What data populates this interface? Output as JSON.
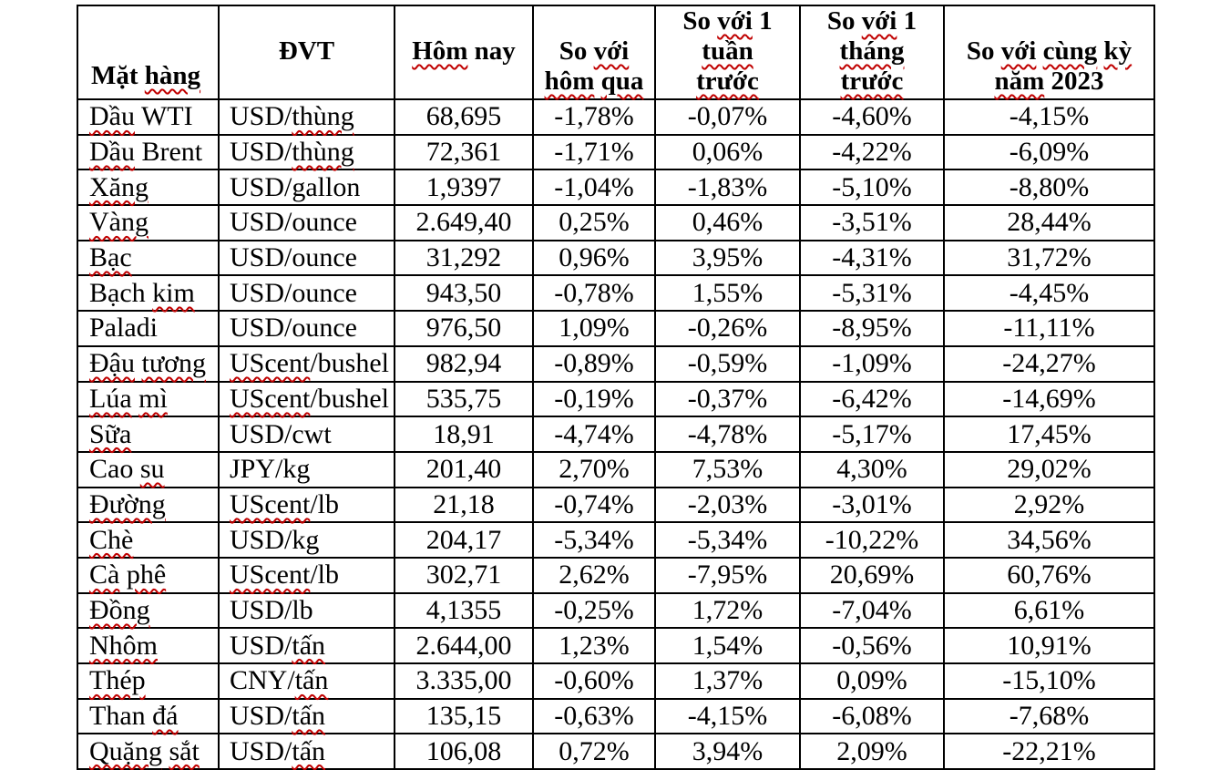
{
  "page": {
    "background": "#ffffff"
  },
  "colors": {
    "border": "#000000",
    "text": "#000000",
    "spellcheck_squiggle": "#c00000"
  },
  "table": {
    "column_keys": [
      "item",
      "unit",
      "today",
      "vs_yesterday",
      "vs_week",
      "vs_month",
      "vs_2023"
    ],
    "header": [
      {
        "key": "item",
        "lines": [
          [
            {
              "t": "Mặt ",
              "sq": false
            },
            {
              "t": "hàng",
              "sq": true
            }
          ]
        ]
      },
      {
        "key": "unit",
        "lines": [
          [
            {
              "t": "ĐVT",
              "sq": false
            }
          ]
        ]
      },
      {
        "key": "today",
        "lines": [
          [
            {
              "t": "Hôm",
              "sq": true
            },
            {
              "t": " nay",
              "sq": false
            }
          ]
        ]
      },
      {
        "key": "vs_yesterday",
        "lines": [
          [
            {
              "t": "So ",
              "sq": false
            },
            {
              "t": "với",
              "sq": true
            }
          ],
          [
            {
              "t": "hôm",
              "sq": true
            },
            {
              "t": " ",
              "sq": false
            },
            {
              "t": "qua",
              "sq": true
            }
          ]
        ]
      },
      {
        "key": "vs_week",
        "lines": [
          [
            {
              "t": "So ",
              "sq": false
            },
            {
              "t": "với",
              "sq": true
            },
            {
              "t": " 1",
              "sq": false
            }
          ],
          [
            {
              "t": "tuần",
              "sq": true
            }
          ],
          [
            {
              "t": "trước",
              "sq": true
            }
          ]
        ]
      },
      {
        "key": "vs_month",
        "lines": [
          [
            {
              "t": "So ",
              "sq": false
            },
            {
              "t": "với",
              "sq": true
            },
            {
              "t": " 1",
              "sq": false
            }
          ],
          [
            {
              "t": "tháng",
              "sq": true
            }
          ],
          [
            {
              "t": "trước",
              "sq": true
            }
          ]
        ]
      },
      {
        "key": "vs_2023",
        "lines": [
          [
            {
              "t": "So ",
              "sq": false
            },
            {
              "t": "với",
              "sq": true
            },
            {
              "t": " ",
              "sq": false
            },
            {
              "t": "cùng",
              "sq": true
            },
            {
              "t": " ",
              "sq": false
            },
            {
              "t": "kỳ",
              "sq": true
            }
          ],
          [
            {
              "t": "năm",
              "sq": true
            },
            {
              "t": " 2023",
              "sq": false
            }
          ]
        ]
      }
    ],
    "rows": [
      {
        "item": [
          {
            "t": "Dầu",
            "sq": true
          },
          {
            "t": " WTI",
            "sq": false
          }
        ],
        "unit": [
          {
            "t": "USD/",
            "sq": false
          },
          {
            "t": "thùng",
            "sq": true
          }
        ],
        "today": "68,695",
        "vs_yesterday": "-1,78%",
        "vs_week": "-0,07%",
        "vs_month": "-4,60%",
        "vs_2023": "-4,15%"
      },
      {
        "item": [
          {
            "t": "Dầu",
            "sq": true
          },
          {
            "t": " Brent",
            "sq": false
          }
        ],
        "unit": [
          {
            "t": "USD/",
            "sq": false
          },
          {
            "t": "thùng",
            "sq": true
          }
        ],
        "today": "72,361",
        "vs_yesterday": "-1,71%",
        "vs_week": "0,06%",
        "vs_month": "-4,22%",
        "vs_2023": "-6,09%"
      },
      {
        "item": [
          {
            "t": "Xăng",
            "sq": true
          }
        ],
        "unit": [
          {
            "t": "USD/gallon",
            "sq": false
          }
        ],
        "today": "1,9397",
        "vs_yesterday": "-1,04%",
        "vs_week": "-1,83%",
        "vs_month": "-5,10%",
        "vs_2023": "-8,80%"
      },
      {
        "item": [
          {
            "t": "Vàng",
            "sq": true
          }
        ],
        "unit": [
          {
            "t": "USD/ounce",
            "sq": false
          }
        ],
        "today": "2.649,40",
        "vs_yesterday": "0,25%",
        "vs_week": "0,46%",
        "vs_month": "-3,51%",
        "vs_2023": "28,44%"
      },
      {
        "item": [
          {
            "t": "Bạc",
            "sq": true
          }
        ],
        "unit": [
          {
            "t": "USD/ounce",
            "sq": false
          }
        ],
        "today": "31,292",
        "vs_yesterday": "0,96%",
        "vs_week": "3,95%",
        "vs_month": "-4,31%",
        "vs_2023": "31,72%"
      },
      {
        "item": [
          {
            "t": "Bạch ",
            "sq": false
          },
          {
            "t": "kim",
            "sq": true
          }
        ],
        "unit": [
          {
            "t": "USD/ounce",
            "sq": false
          }
        ],
        "today": "943,50",
        "vs_yesterday": "-0,78%",
        "vs_week": "1,55%",
        "vs_month": "-5,31%",
        "vs_2023": "-4,45%"
      },
      {
        "item": [
          {
            "t": "Paladi",
            "sq": false
          }
        ],
        "unit": [
          {
            "t": "USD/ounce",
            "sq": false
          }
        ],
        "today": "976,50",
        "vs_yesterday": "1,09%",
        "vs_week": "-0,26%",
        "vs_month": "-8,95%",
        "vs_2023": "-11,11%"
      },
      {
        "item": [
          {
            "t": "Đậu",
            "sq": true
          },
          {
            "t": " ",
            "sq": false
          },
          {
            "t": "tương",
            "sq": true
          }
        ],
        "unit": [
          {
            "t": "UScent",
            "sq": true
          },
          {
            "t": "/bushel",
            "sq": false
          }
        ],
        "today": "982,94",
        "vs_yesterday": "-0,89%",
        "vs_week": "-0,59%",
        "vs_month": "-1,09%",
        "vs_2023": "-24,27%"
      },
      {
        "item": [
          {
            "t": "Lúa",
            "sq": true
          },
          {
            "t": " ",
            "sq": false
          },
          {
            "t": "mì",
            "sq": true
          }
        ],
        "unit": [
          {
            "t": "UScent",
            "sq": true
          },
          {
            "t": "/bushel",
            "sq": false
          }
        ],
        "today": "535,75",
        "vs_yesterday": "-0,19%",
        "vs_week": "-0,37%",
        "vs_month": "-6,42%",
        "vs_2023": "-14,69%"
      },
      {
        "item": [
          {
            "t": "Sữa",
            "sq": true
          }
        ],
        "unit": [
          {
            "t": "USD/cwt",
            "sq": false
          }
        ],
        "today": "18,91",
        "vs_yesterday": "-4,74%",
        "vs_week": "-4,78%",
        "vs_month": "-5,17%",
        "vs_2023": "17,45%"
      },
      {
        "item": [
          {
            "t": "Cao ",
            "sq": false
          },
          {
            "t": "su",
            "sq": true
          }
        ],
        "unit": [
          {
            "t": "JPY/kg",
            "sq": false
          }
        ],
        "today": "201,40",
        "vs_yesterday": "2,70%",
        "vs_week": "7,53%",
        "vs_month": "4,30%",
        "vs_2023": "29,02%"
      },
      {
        "item": [
          {
            "t": "Đường",
            "sq": true
          }
        ],
        "unit": [
          {
            "t": "UScent",
            "sq": true
          },
          {
            "t": "/lb",
            "sq": false
          }
        ],
        "today": "21,18",
        "vs_yesterday": "-0,74%",
        "vs_week": "-2,03%",
        "vs_month": "-3,01%",
        "vs_2023": "2,92%"
      },
      {
        "item": [
          {
            "t": "Chè",
            "sq": true
          }
        ],
        "unit": [
          {
            "t": "USD/kg",
            "sq": false
          }
        ],
        "today": "204,17",
        "vs_yesterday": "-5,34%",
        "vs_week": "-5,34%",
        "vs_month": "-10,22%",
        "vs_2023": "34,56%"
      },
      {
        "item": [
          {
            "t": "Cà",
            "sq": true
          },
          {
            "t": " ",
            "sq": false
          },
          {
            "t": "phê",
            "sq": true
          }
        ],
        "unit": [
          {
            "t": "UScent",
            "sq": true
          },
          {
            "t": "/lb",
            "sq": false
          }
        ],
        "today": "302,71",
        "vs_yesterday": "2,62%",
        "vs_week": "-7,95%",
        "vs_month": "20,69%",
        "vs_2023": "60,76%"
      },
      {
        "item": [
          {
            "t": "Đồng",
            "sq": true
          }
        ],
        "unit": [
          {
            "t": "USD/lb",
            "sq": false
          }
        ],
        "today": "4,1355",
        "vs_yesterday": "-0,25%",
        "vs_week": "1,72%",
        "vs_month": "-7,04%",
        "vs_2023": "6,61%"
      },
      {
        "item": [
          {
            "t": "Nhôm",
            "sq": true
          }
        ],
        "unit": [
          {
            "t": "USD/",
            "sq": false
          },
          {
            "t": "tấn",
            "sq": true
          }
        ],
        "today": "2.644,00",
        "vs_yesterday": "1,23%",
        "vs_week": "1,54%",
        "vs_month": "-0,56%",
        "vs_2023": "10,91%"
      },
      {
        "item": [
          {
            "t": "Thép",
            "sq": true
          }
        ],
        "unit": [
          {
            "t": "CNY/",
            "sq": false
          },
          {
            "t": "tấn",
            "sq": true
          }
        ],
        "today": "3.335,00",
        "vs_yesterday": "-0,60%",
        "vs_week": "1,37%",
        "vs_month": "0,09%",
        "vs_2023": "-15,10%"
      },
      {
        "item": [
          {
            "t": "Than ",
            "sq": false
          },
          {
            "t": "đá",
            "sq": true
          }
        ],
        "unit": [
          {
            "t": "USD/",
            "sq": false
          },
          {
            "t": "tấn",
            "sq": true
          }
        ],
        "today": "135,15",
        "vs_yesterday": "-0,63%",
        "vs_week": "-4,15%",
        "vs_month": "-6,08%",
        "vs_2023": "-7,68%"
      },
      {
        "item": [
          {
            "t": "Quặng",
            "sq": true
          },
          {
            "t": " ",
            "sq": false
          },
          {
            "t": "sắt",
            "sq": true
          }
        ],
        "unit": [
          {
            "t": "USD/",
            "sq": false
          },
          {
            "t": "tấn",
            "sq": true
          }
        ],
        "today": "106,08",
        "vs_yesterday": "0,72%",
        "vs_week": "3,94%",
        "vs_month": "2,09%",
        "vs_2023": "-22,21%"
      }
    ]
  }
}
